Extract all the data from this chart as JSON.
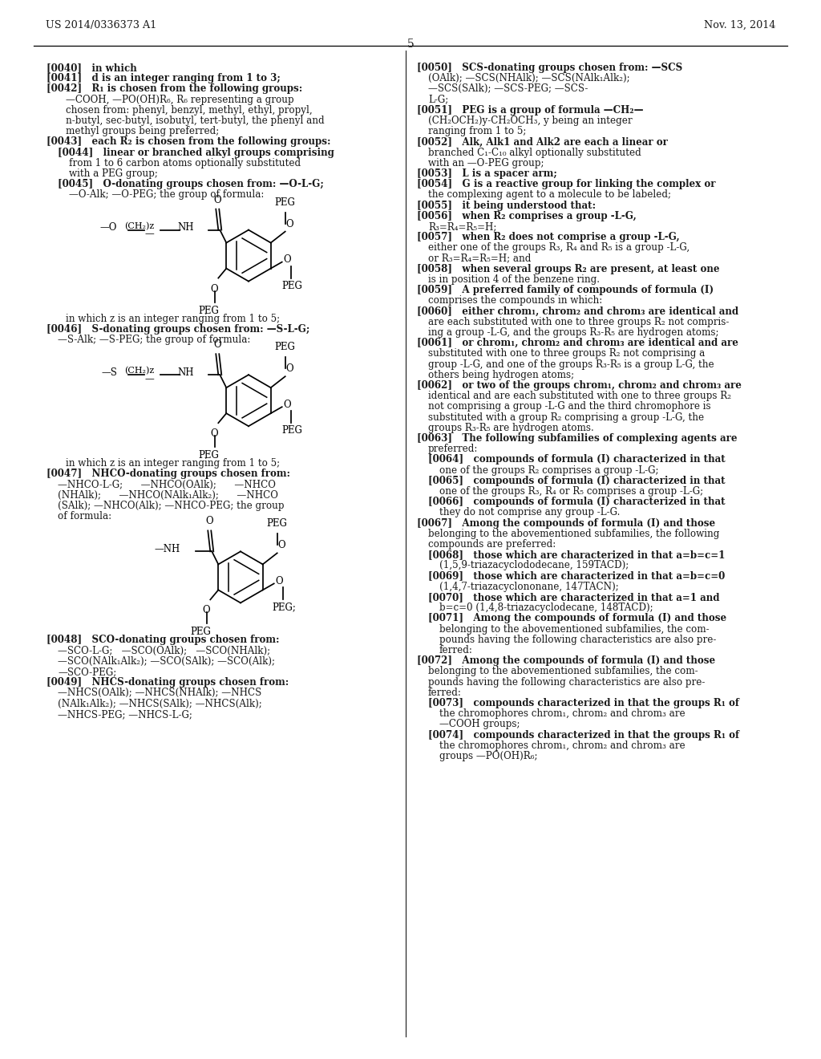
{
  "bg_color": "#ffffff",
  "header_left": "US 2014/0336373 A1",
  "header_right": "Nov. 13, 2014",
  "page_number": "5",
  "text_color": "#1a1a1a"
}
